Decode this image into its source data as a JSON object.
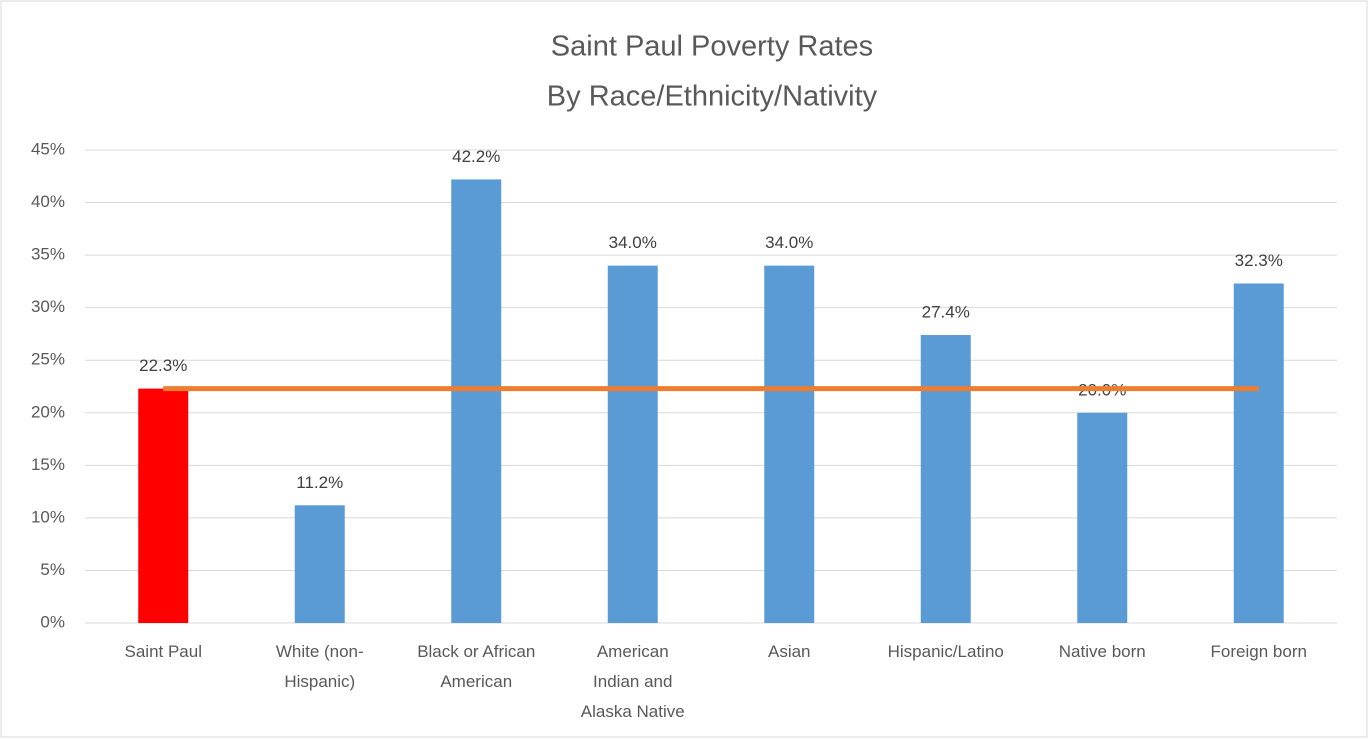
{
  "chart_data": {
    "type": "bar",
    "title": "Saint Paul Poverty Rates",
    "subtitle": "By Race/Ethnicity/Nativity",
    "categories": [
      [
        "Saint Paul"
      ],
      [
        "White (non-",
        "Hispanic)"
      ],
      [
        "Black or African",
        "American"
      ],
      [
        "American",
        "Indian and",
        "Alaska Native"
      ],
      [
        "Asian"
      ],
      [
        "Hispanic/Latino"
      ],
      [
        "Native born"
      ],
      [
        "Foreign born"
      ]
    ],
    "series": [
      {
        "type": "bar",
        "values": [
          22.3,
          11.2,
          42.2,
          34.0,
          34.0,
          27.4,
          20.0,
          32.3
        ],
        "value_labels": [
          "22.3%",
          "11.2%",
          "42.2%",
          "34.0%",
          "34.0%",
          "27.4%",
          "20.0%",
          "32.3%"
        ],
        "colors": [
          "#ff0000",
          "#5b9bd5",
          "#5b9bd5",
          "#5b9bd5",
          "#5b9bd5",
          "#5b9bd5",
          "#5b9bd5",
          "#5b9bd5"
        ]
      },
      {
        "type": "line",
        "color": "#ed7d31",
        "values": [
          22.3,
          22.3,
          22.3,
          22.3,
          22.3,
          22.3,
          22.3,
          22.3
        ]
      }
    ],
    "ylim": [
      0,
      45
    ],
    "yticks": [
      {
        "value": 0,
        "label": "0%"
      },
      {
        "value": 5,
        "label": "5%"
      },
      {
        "value": 10,
        "label": "10%"
      },
      {
        "value": 15,
        "label": "15%"
      },
      {
        "value": 20,
        "label": "20%"
      },
      {
        "value": 25,
        "label": "25%"
      },
      {
        "value": 30,
        "label": "30%"
      },
      {
        "value": 35,
        "label": "35%"
      },
      {
        "value": 40,
        "label": "40%"
      },
      {
        "value": 45,
        "label": "45%"
      }
    ],
    "grid": true
  }
}
